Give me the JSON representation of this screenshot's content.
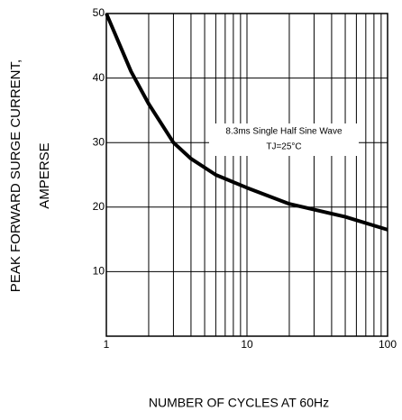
{
  "chart_data": {
    "type": "line",
    "ylabel": [
      "PEAK FORWARD SURGE CURRENT,",
      "AMPERSE"
    ],
    "xlabel": "NUMBER  OF  CYCLES AT 60Hz",
    "annotations": [
      "8.3ms Single Half Sine Wave",
      "TJ=25°C"
    ],
    "x": [
      1,
      1.5,
      2,
      3,
      4,
      6,
      10,
      20,
      50,
      100
    ],
    "series": [
      {
        "color": "#000000",
        "values": [
          50,
          41,
          36,
          30,
          27.5,
          25,
          23,
          20.5,
          18.5,
          16.5
        ]
      }
    ],
    "xlim": [
      1,
      100
    ],
    "xlog": true,
    "xticks": [
      1,
      10,
      100
    ],
    "xminorticks": [
      2,
      3,
      4,
      5,
      6,
      7,
      8,
      9,
      20,
      30,
      40,
      50,
      60,
      70,
      80,
      90
    ],
    "ylim": [
      0,
      50
    ],
    "yticks": [
      10,
      20,
      30,
      40,
      50
    ],
    "grid": true
  }
}
